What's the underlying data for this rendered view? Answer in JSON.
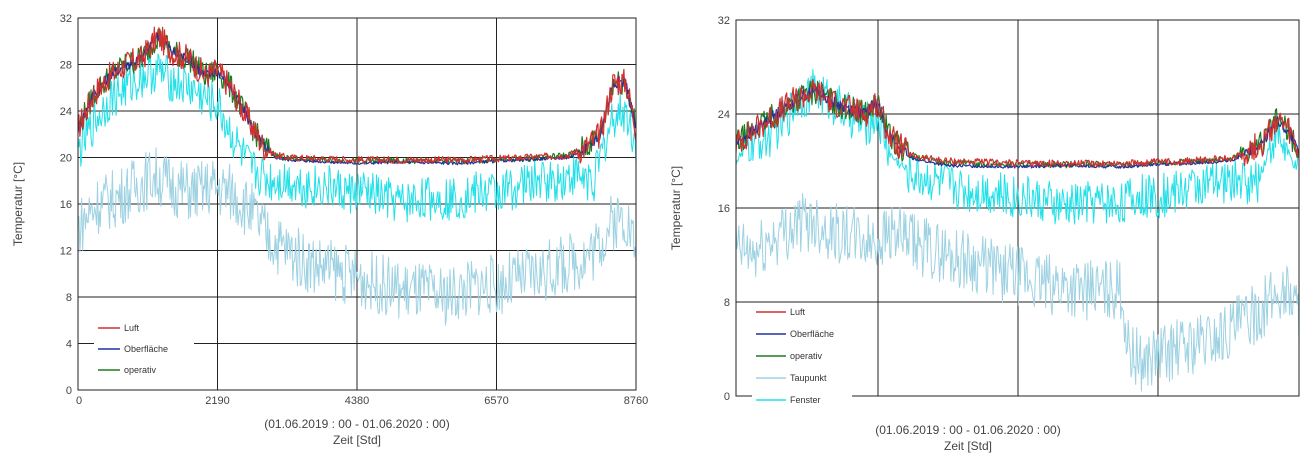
{
  "chart_data": [
    {
      "type": "line",
      "ylabel": "Temperatur [°C]",
      "period": "(01.06.2019 : 00 - 01.06.2020 : 00)",
      "xlabel": "Zeit  [Std]",
      "xlim": [
        0,
        8760
      ],
      "ylim": [
        0,
        32
      ],
      "xticks": [
        0,
        2190,
        4380,
        6570,
        8760
      ],
      "yticks": [
        0,
        4,
        8,
        12,
        16,
        20,
        24,
        28,
        32
      ],
      "grid": true,
      "legend_position": "bottom-left",
      "legend": [
        "Luft",
        "Oberfläche",
        "operativ"
      ],
      "series": [
        {
          "name": "Luft",
          "color": "#d03030",
          "x": [
            0,
            250,
            500,
            750,
            1000,
            1250,
            1500,
            1750,
            2000,
            2190,
            2400,
            2700,
            2900,
            3100,
            3300,
            4380,
            5000,
            6000,
            6570,
            7000,
            7700,
            8000,
            8200,
            8400,
            8600,
            8760
          ],
          "y": [
            22.5,
            25.5,
            27.0,
            28.0,
            28.5,
            30.5,
            29.0,
            28.5,
            27.0,
            27.5,
            26.0,
            23.0,
            21.0,
            20.2,
            20.0,
            19.8,
            19.8,
            19.8,
            19.9,
            20.0,
            20.2,
            21.0,
            22.0,
            26.5,
            26.5,
            22.5
          ]
        },
        {
          "name": "Oberfläche",
          "color": "#2030a0",
          "x": [
            0,
            250,
            500,
            750,
            1000,
            1250,
            1500,
            1750,
            2000,
            2190,
            2400,
            2700,
            2900,
            3100,
            3300,
            4380,
            5000,
            6000,
            6570,
            7000,
            7700,
            8000,
            8200,
            8400,
            8600,
            8760
          ],
          "y": [
            22.5,
            25.5,
            27.0,
            28.0,
            28.5,
            30.5,
            29.0,
            28.5,
            27.0,
            27.5,
            26.0,
            23.0,
            21.0,
            20.0,
            19.8,
            19.5,
            19.6,
            19.5,
            19.7,
            19.8,
            20.0,
            20.8,
            22.0,
            26.5,
            26.5,
            22.5
          ]
        },
        {
          "name": "operativ",
          "color": "#1f7a1f",
          "x": [
            0,
            250,
            500,
            750,
            1000,
            1250,
            1500,
            1750,
            2000,
            2190,
            2400,
            2700,
            2900,
            3100,
            3300,
            4380,
            5000,
            6000,
            6570,
            7000,
            7700,
            8000,
            8200,
            8400,
            8600,
            8760
          ],
          "y": [
            22.5,
            25.5,
            27.0,
            28.0,
            28.5,
            30.5,
            29.0,
            28.5,
            27.0,
            27.5,
            26.0,
            23.0,
            21.0,
            20.2,
            19.9,
            19.7,
            19.7,
            19.7,
            19.8,
            19.9,
            20.2,
            21.0,
            22.0,
            26.5,
            26.5,
            22.5
          ]
        },
        {
          "color": "#9ed2e2",
          "x": [
            0,
            300,
            600,
            900,
            1200,
            1500,
            1800,
            2100,
            2400,
            2700,
            3000,
            3300,
            3600,
            3900,
            4200,
            4500,
            4800,
            5100,
            5400,
            5700,
            6000,
            6300,
            6600,
            6900,
            7200,
            7500,
            7800,
            8100,
            8400,
            8600,
            8760
          ],
          "y": [
            14.0,
            16.0,
            16.5,
            17.5,
            18.5,
            17.5,
            17.0,
            17.5,
            17.0,
            15.5,
            13.0,
            12.0,
            11.0,
            10.5,
            10.0,
            9.5,
            9.0,
            8.5,
            8.5,
            8.0,
            8.5,
            9.0,
            9.0,
            9.5,
            10.0,
            10.5,
            11.0,
            12.0,
            14.5,
            15.0,
            12.0
          ]
        },
        {
          "color": "#22e0e8",
          "x": [
            0,
            250,
            500,
            750,
            1000,
            1250,
            1500,
            1750,
            2000,
            2190,
            2400,
            2700,
            3000,
            3300,
            3600,
            3900,
            4200,
            4500,
            4800,
            5100,
            5400,
            5700,
            6000,
            6300,
            6600,
            6900,
            7200,
            7500,
            7800,
            8100,
            8400,
            8600,
            8760
          ],
          "y": [
            20.5,
            23.0,
            25.0,
            26.0,
            27.0,
            27.5,
            26.5,
            26.0,
            25.0,
            24.5,
            22.0,
            19.0,
            18.0,
            18.0,
            17.5,
            17.5,
            17.0,
            17.0,
            16.5,
            16.0,
            16.5,
            16.5,
            16.5,
            17.0,
            17.0,
            17.5,
            18.0,
            18.0,
            18.5,
            18.0,
            23.5,
            24.0,
            21.0
          ]
        }
      ]
    },
    {
      "type": "line",
      "ylabel": "Temperatur [°C]",
      "period": "(01.06.2019 : 00 - 01.06.2020 : 00)",
      "xlabel": "Zeit  [Std]",
      "xlim": [
        0,
        8760
      ],
      "ylim": [
        0,
        32
      ],
      "yticks": [
        0,
        8,
        16,
        24,
        32
      ],
      "grid": true,
      "legend_position": "bottom-left",
      "legend": [
        "Luft",
        "Oberfläche",
        "operativ",
        "Taupunkt",
        "Fenster"
      ],
      "series": [
        {
          "name": "Luft",
          "color": "#d03030",
          "x": [
            0,
            250,
            500,
            750,
            1000,
            1250,
            1500,
            1750,
            2000,
            2190,
            2400,
            2700,
            3000,
            3300,
            4380,
            5000,
            6000,
            6570,
            7000,
            7700,
            8000,
            8200,
            8400,
            8600,
            8760
          ],
          "y": [
            21.5,
            22.5,
            23.5,
            24.5,
            25.5,
            26.0,
            25.0,
            24.5,
            24.0,
            25.0,
            22.0,
            20.5,
            20.2,
            20.0,
            19.8,
            19.8,
            19.8,
            19.9,
            20.0,
            20.2,
            21.0,
            21.5,
            23.5,
            22.5,
            20.5
          ]
        },
        {
          "name": "Oberfläche",
          "color": "#2030a0",
          "x": [
            0,
            250,
            500,
            750,
            1000,
            1250,
            1500,
            1750,
            2000,
            2190,
            2400,
            2700,
            3000,
            3300,
            4380,
            5000,
            6000,
            6570,
            7000,
            7700,
            8000,
            8200,
            8400,
            8600,
            8760
          ],
          "y": [
            21.5,
            22.5,
            23.5,
            24.5,
            25.5,
            26.0,
            25.0,
            24.5,
            24.0,
            25.0,
            22.0,
            20.3,
            19.9,
            19.6,
            19.5,
            19.6,
            19.5,
            19.7,
            19.8,
            20.0,
            20.8,
            21.5,
            23.5,
            22.5,
            20.5
          ]
        },
        {
          "name": "operativ",
          "color": "#1f7a1f",
          "x": [
            0,
            250,
            500,
            750,
            1000,
            1250,
            1500,
            1750,
            2000,
            2190,
            2400,
            2700,
            3000,
            3300,
            4380,
            5000,
            6000,
            6570,
            7000,
            7700,
            8000,
            8200,
            8400,
            8600,
            8760
          ],
          "y": [
            21.5,
            22.5,
            23.5,
            24.5,
            25.5,
            26.0,
            25.0,
            24.5,
            24.0,
            25.0,
            22.0,
            20.5,
            20.1,
            19.8,
            19.7,
            19.7,
            19.7,
            19.8,
            19.9,
            20.2,
            21.0,
            21.5,
            23.5,
            22.5,
            20.5
          ]
        },
        {
          "name": "Taupunkt",
          "color": "#9ed2e2",
          "x": [
            0,
            300,
            600,
            900,
            1200,
            1500,
            1800,
            2100,
            2400,
            2700,
            3000,
            3300,
            3600,
            3900,
            4200,
            4500,
            4800,
            5100,
            5400,
            5700,
            6000,
            6100,
            6300,
            6600,
            6900,
            7200,
            7500,
            7800,
            8100,
            8400,
            8600,
            8760
          ],
          "y": [
            12.5,
            12.0,
            13.5,
            14.5,
            15.0,
            14.0,
            13.5,
            13.0,
            14.0,
            13.0,
            12.5,
            12.0,
            11.5,
            11.0,
            10.5,
            10.0,
            9.5,
            9.5,
            9.0,
            9.0,
            9.0,
            4.0,
            3.0,
            3.5,
            4.0,
            4.5,
            5.0,
            6.0,
            7.0,
            8.5,
            9.0,
            7.0
          ]
        },
        {
          "name": "Fenster",
          "color": "#22e0e8",
          "x": [
            0,
            250,
            500,
            750,
            1000,
            1250,
            1500,
            1750,
            2000,
            2190,
            2400,
            2700,
            3000,
            3300,
            3600,
            3900,
            4200,
            4500,
            4800,
            5100,
            5400,
            5700,
            6000,
            6300,
            6600,
            6900,
            7200,
            7500,
            7800,
            8100,
            8400,
            8600,
            8760
          ],
          "y": [
            20.0,
            21.5,
            22.0,
            23.5,
            25.5,
            26.0,
            25.0,
            24.0,
            23.0,
            24.0,
            20.5,
            19.0,
            18.5,
            18.0,
            17.5,
            17.5,
            17.0,
            17.0,
            16.5,
            16.0,
            16.5,
            16.5,
            16.5,
            17.0,
            17.0,
            17.5,
            18.0,
            18.0,
            18.5,
            18.0,
            22.5,
            20.5,
            19.0
          ]
        }
      ]
    }
  ]
}
